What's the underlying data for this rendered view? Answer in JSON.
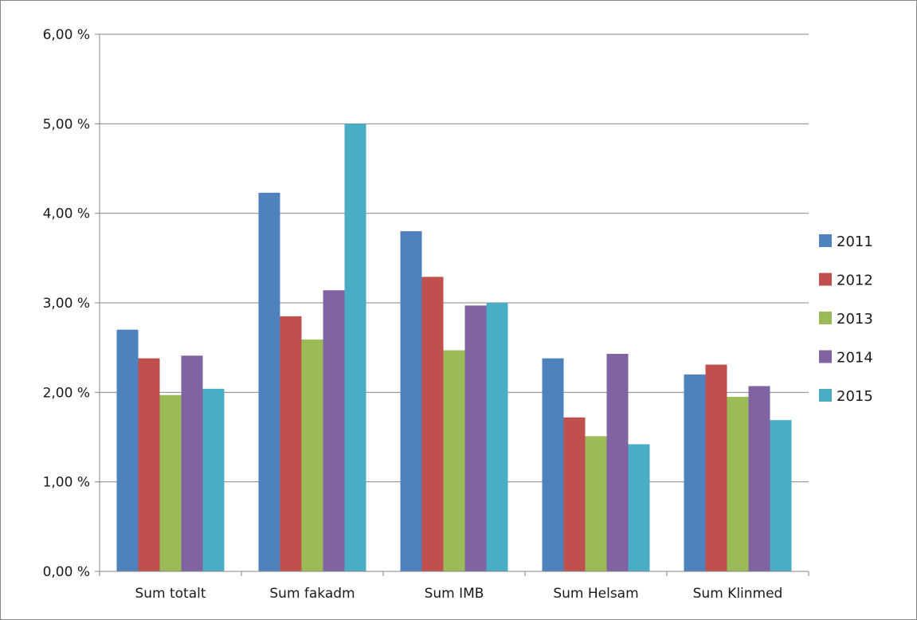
{
  "chart_data": {
    "type": "bar",
    "categories": [
      "Sum totalt",
      "Sum fakadm",
      "Sum IMB",
      "Sum Helsam",
      "Sum Klinmed"
    ],
    "series": [
      {
        "name": "2011",
        "color": "#4F81BD",
        "values": [
          2.7,
          4.23,
          3.8,
          2.38,
          2.2
        ]
      },
      {
        "name": "2012",
        "color": "#C0504D",
        "values": [
          2.38,
          2.85,
          3.29,
          1.72,
          2.31
        ]
      },
      {
        "name": "2013",
        "color": "#9BBB59",
        "values": [
          1.97,
          2.59,
          2.47,
          1.51,
          1.95
        ]
      },
      {
        "name": "2014",
        "color": "#8064A2",
        "values": [
          2.41,
          3.14,
          2.97,
          2.43,
          2.07
        ]
      },
      {
        "name": "2015",
        "color": "#4BACC6",
        "values": [
          2.04,
          5.0,
          3.0,
          1.42,
          1.69
        ]
      }
    ],
    "ylim": [
      0,
      6
    ],
    "yticks": [
      "0,00 %",
      "1,00 %",
      "2,00 %",
      "3,00 %",
      "4,00 %",
      "5,00 %",
      "6,00 %"
    ],
    "ytick_values": [
      0,
      1,
      2,
      3,
      4,
      5,
      6
    ],
    "grid": true,
    "legend_position": "right"
  }
}
